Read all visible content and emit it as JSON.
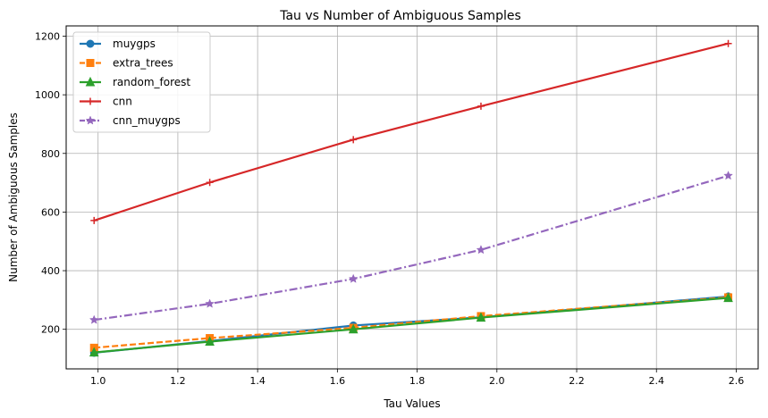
{
  "chart_data": {
    "type": "line",
    "title": "Tau vs Number of Ambiguous Samples",
    "xlabel": "Tau Values",
    "ylabel": "Number of Ambiguous Samples",
    "x": [
      0.99,
      1.28,
      1.64,
      1.96,
      2.58
    ],
    "xlim": [
      0.92,
      2.655
    ],
    "ylim": [
      65,
      1235
    ],
    "xticks": [
      1.0,
      1.2,
      1.4,
      1.6,
      1.8,
      2.0,
      2.2,
      2.4,
      2.6
    ],
    "xtick_labels": [
      "1.0",
      "1.2",
      "1.4",
      "1.6",
      "1.8",
      "2.0",
      "2.2",
      "2.4",
      "2.6"
    ],
    "yticks": [
      200,
      400,
      600,
      800,
      1000,
      1200
    ],
    "ytick_labels": [
      "200",
      "400",
      "600",
      "800",
      "1000",
      "1200"
    ],
    "grid": true,
    "legend_position": "top-left",
    "series": [
      {
        "name": "muygps",
        "values": [
          120,
          160,
          213,
          241,
          312
        ],
        "color": "#1f77b4",
        "marker": "circle",
        "dash": "solid"
      },
      {
        "name": "extra_trees",
        "values": [
          137,
          170,
          205,
          245,
          309
        ],
        "color": "#ff7f0e",
        "marker": "square",
        "dash": "dashed"
      },
      {
        "name": "random_forest",
        "values": [
          121,
          158,
          200,
          240,
          307
        ],
        "color": "#2ca02c",
        "marker": "triangle",
        "dash": "solid"
      },
      {
        "name": "cnn",
        "values": [
          571,
          701,
          847,
          961,
          1175
        ],
        "color": "#d62728",
        "marker": "plus",
        "dash": "solid"
      },
      {
        "name": "cnn_muygps",
        "values": [
          232,
          287,
          372,
          471,
          724
        ],
        "color": "#9467bd",
        "marker": "star",
        "dash": "dashdot"
      }
    ]
  }
}
